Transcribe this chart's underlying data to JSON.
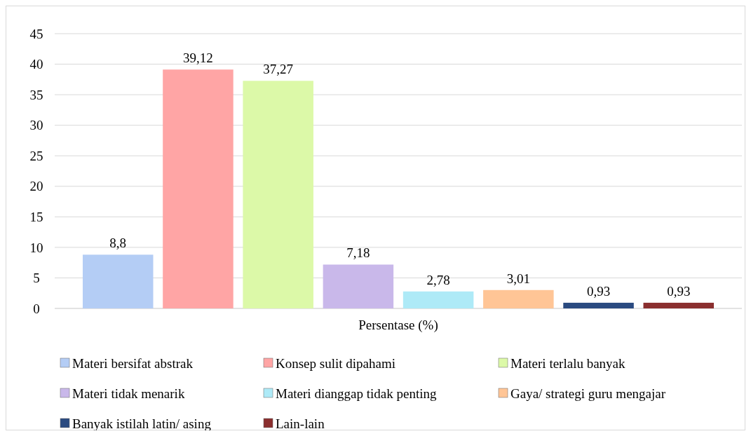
{
  "chart_data": {
    "type": "bar",
    "categories": [
      "Persentase (%)"
    ],
    "series": [
      {
        "name": "Materi bersifat abstrak",
        "color": "#b4cdf5",
        "values": [
          8.8
        ],
        "value_labels": [
          "8,8"
        ]
      },
      {
        "name": "Konsep sulit dipahami",
        "color": "#ffa5a5",
        "values": [
          39.12
        ],
        "value_labels": [
          "39,12"
        ]
      },
      {
        "name": "Materi terlalu banyak",
        "color": "#dcf9a8",
        "values": [
          37.27
        ],
        "value_labels": [
          "37,27"
        ]
      },
      {
        "name": "Materi tidak menarik",
        "color": "#c9b8ea",
        "values": [
          7.18
        ],
        "value_labels": [
          "7,18"
        ]
      },
      {
        "name": "Materi dianggap tidak penting",
        "color": "#aeeaf7",
        "values": [
          2.78
        ],
        "value_labels": [
          "2,78"
        ]
      },
      {
        "name": "Gaya/ strategi guru mengajar",
        "color": "#ffc596",
        "values": [
          3.01
        ],
        "value_labels": [
          "3,01"
        ]
      },
      {
        "name": "Banyak istilah latin/ asing",
        "color": "#2a4a80",
        "values": [
          0.93
        ],
        "value_labels": [
          "0,93"
        ]
      },
      {
        "name": "Lain-lain",
        "color": "#8a2e2e",
        "values": [
          0.93
        ],
        "value_labels": [
          "0,93"
        ]
      }
    ],
    "ylim": [
      0,
      45
    ],
    "yticks": [
      0,
      5,
      10,
      15,
      20,
      25,
      30,
      35,
      40,
      45
    ],
    "grid": "y",
    "legend": "bottom"
  }
}
